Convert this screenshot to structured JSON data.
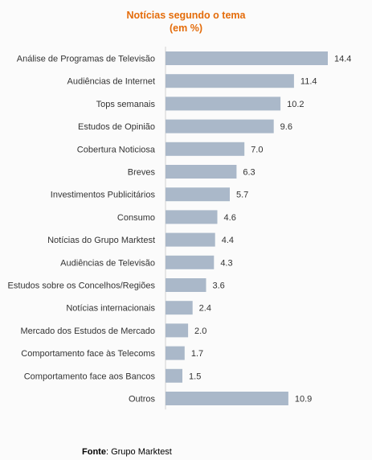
{
  "chart_data": {
    "type": "bar",
    "orientation": "horizontal",
    "title": "Notícias segundo o tema",
    "subtitle": "(em %)",
    "categories": [
      "Análise de Programas de Televisão",
      "Audiências de Internet",
      "Tops semanais",
      "Estudos de Opinião",
      "Cobertura Noticiosa",
      "Breves",
      "Investimentos Publicitários",
      "Consumo",
      "Notícias do Grupo Marktest",
      "Audiências de Televisão",
      "Estudos sobre os Concelhos/Regiões",
      "Notícias internacionais",
      "Mercado dos Estudos de Mercado",
      "Comportamento face às Telecoms",
      "Comportamento face aos Bancos",
      "Outros"
    ],
    "values": [
      14.4,
      11.4,
      10.2,
      9.6,
      7.0,
      6.3,
      5.7,
      4.6,
      4.4,
      4.3,
      3.6,
      2.4,
      2.0,
      1.7,
      1.5,
      10.9
    ],
    "value_labels": [
      "14.4",
      "11.4",
      "10.2",
      "9.6",
      "7.0",
      "6.3",
      "5.7",
      "4.6",
      "4.4",
      "4.3",
      "3.6",
      "2.4",
      "2.0",
      "1.7",
      "1.5",
      "10.9"
    ],
    "xlim": [
      0,
      14.4
    ],
    "grid": false,
    "bar_color": "#aab8c9",
    "title_color": "#e46c0a"
  },
  "source": {
    "label": "Fonte",
    "text": ": Grupo Marktest"
  }
}
